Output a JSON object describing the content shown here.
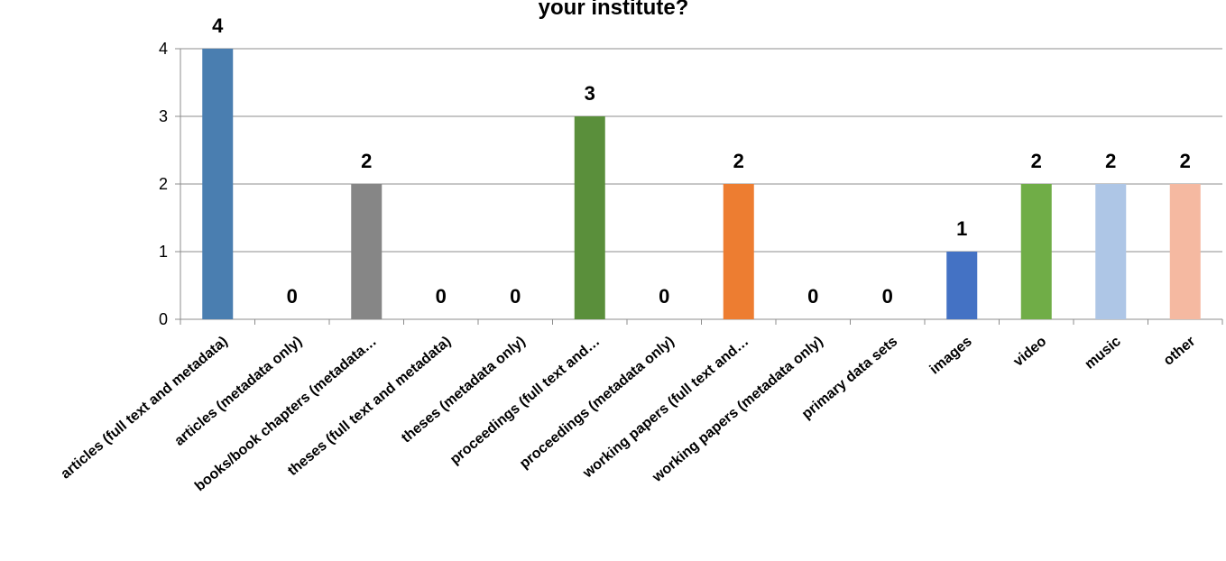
{
  "chart_data": {
    "type": "bar",
    "title": "your institute?",
    "xlabel": "",
    "ylabel": "",
    "ylim": [
      0,
      4
    ],
    "yticks": [
      "0",
      "1",
      "2",
      "3",
      "4"
    ],
    "grid": true,
    "legend": "none",
    "categories": [
      "articles (full text and metadata)",
      "articles (metadata only)",
      "books/book chapters (metadata…",
      "theses (full text and metadata)",
      "theses (metadata only)",
      "proceedings (full text and…",
      "proceedings (metadata only)",
      "working papers (full text and…",
      "working papers (metadata only)",
      "primary data sets",
      "images",
      "video",
      "music",
      "other"
    ],
    "values": [
      4,
      0,
      2,
      0,
      0,
      3,
      0,
      2,
      0,
      0,
      1,
      2,
      2,
      2
    ],
    "value_labels": [
      "4",
      "0",
      "2",
      "0",
      "0",
      "3",
      "0",
      "2",
      "0",
      "0",
      "1",
      "2",
      "2",
      "2"
    ],
    "colors": [
      "#4a7eb0",
      "#4a7eb0",
      "#868686",
      "#4a7eb0",
      "#4a7eb0",
      "#5a8f3b",
      "#4a7eb0",
      "#ed7d31",
      "#4a7eb0",
      "#4a7eb0",
      "#4472c4",
      "#70ad47",
      "#aec6e6",
      "#f5b9a1"
    ]
  }
}
